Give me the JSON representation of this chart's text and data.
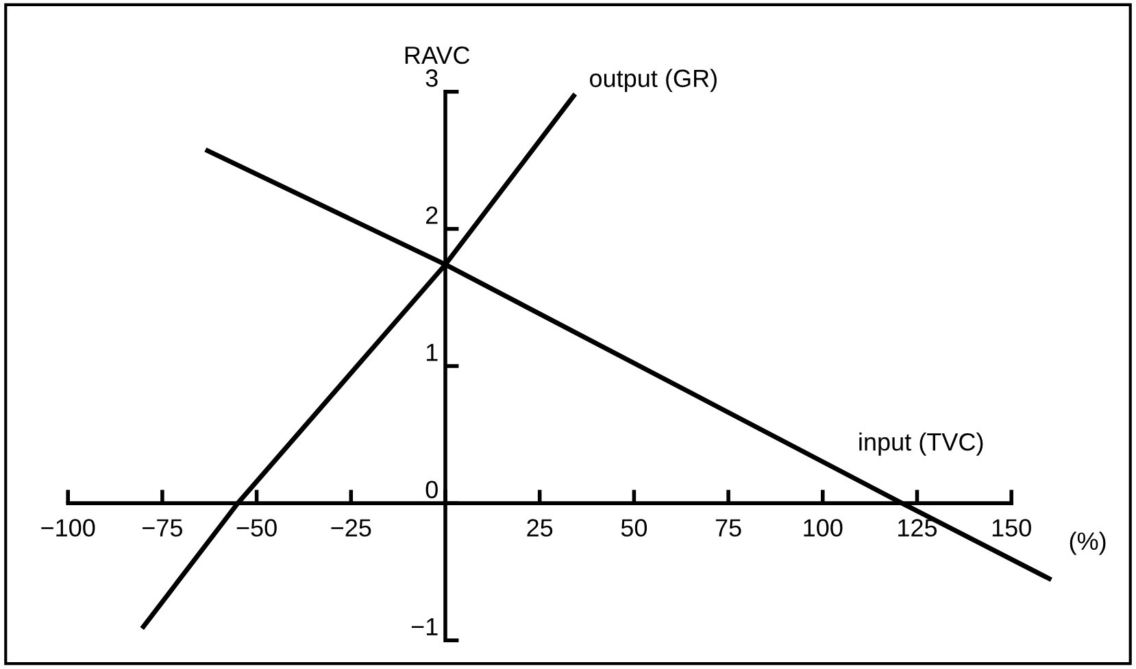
{
  "chart_data": {
    "type": "line",
    "ylabel": "RAVC",
    "xlabel": "(%)",
    "series": [
      {
        "name": "output (GR)",
        "color": "#000000",
        "x": [
          -80,
          -55,
          0,
          34
        ],
        "values": [
          -0.9,
          0,
          1.74,
          2.97
        ]
      },
      {
        "name": "input (TVC)",
        "color": "#000000",
        "x": [
          -63,
          0,
          121,
          160
        ],
        "values": [
          2.57,
          1.74,
          0,
          -0.55
        ]
      }
    ],
    "xlim": [
      -115,
      180
    ],
    "ylim": [
      -1.16,
      3.62
    ],
    "xticks": [
      -100,
      -75,
      -50,
      -25,
      {
        "value": 0,
        "label": null
      },
      25,
      50,
      75,
      100,
      125,
      150
    ],
    "yticks": [
      -1,
      0,
      1,
      2,
      3
    ],
    "grid": false,
    "legend": false,
    "marker": "none",
    "line_style": "solid"
  }
}
